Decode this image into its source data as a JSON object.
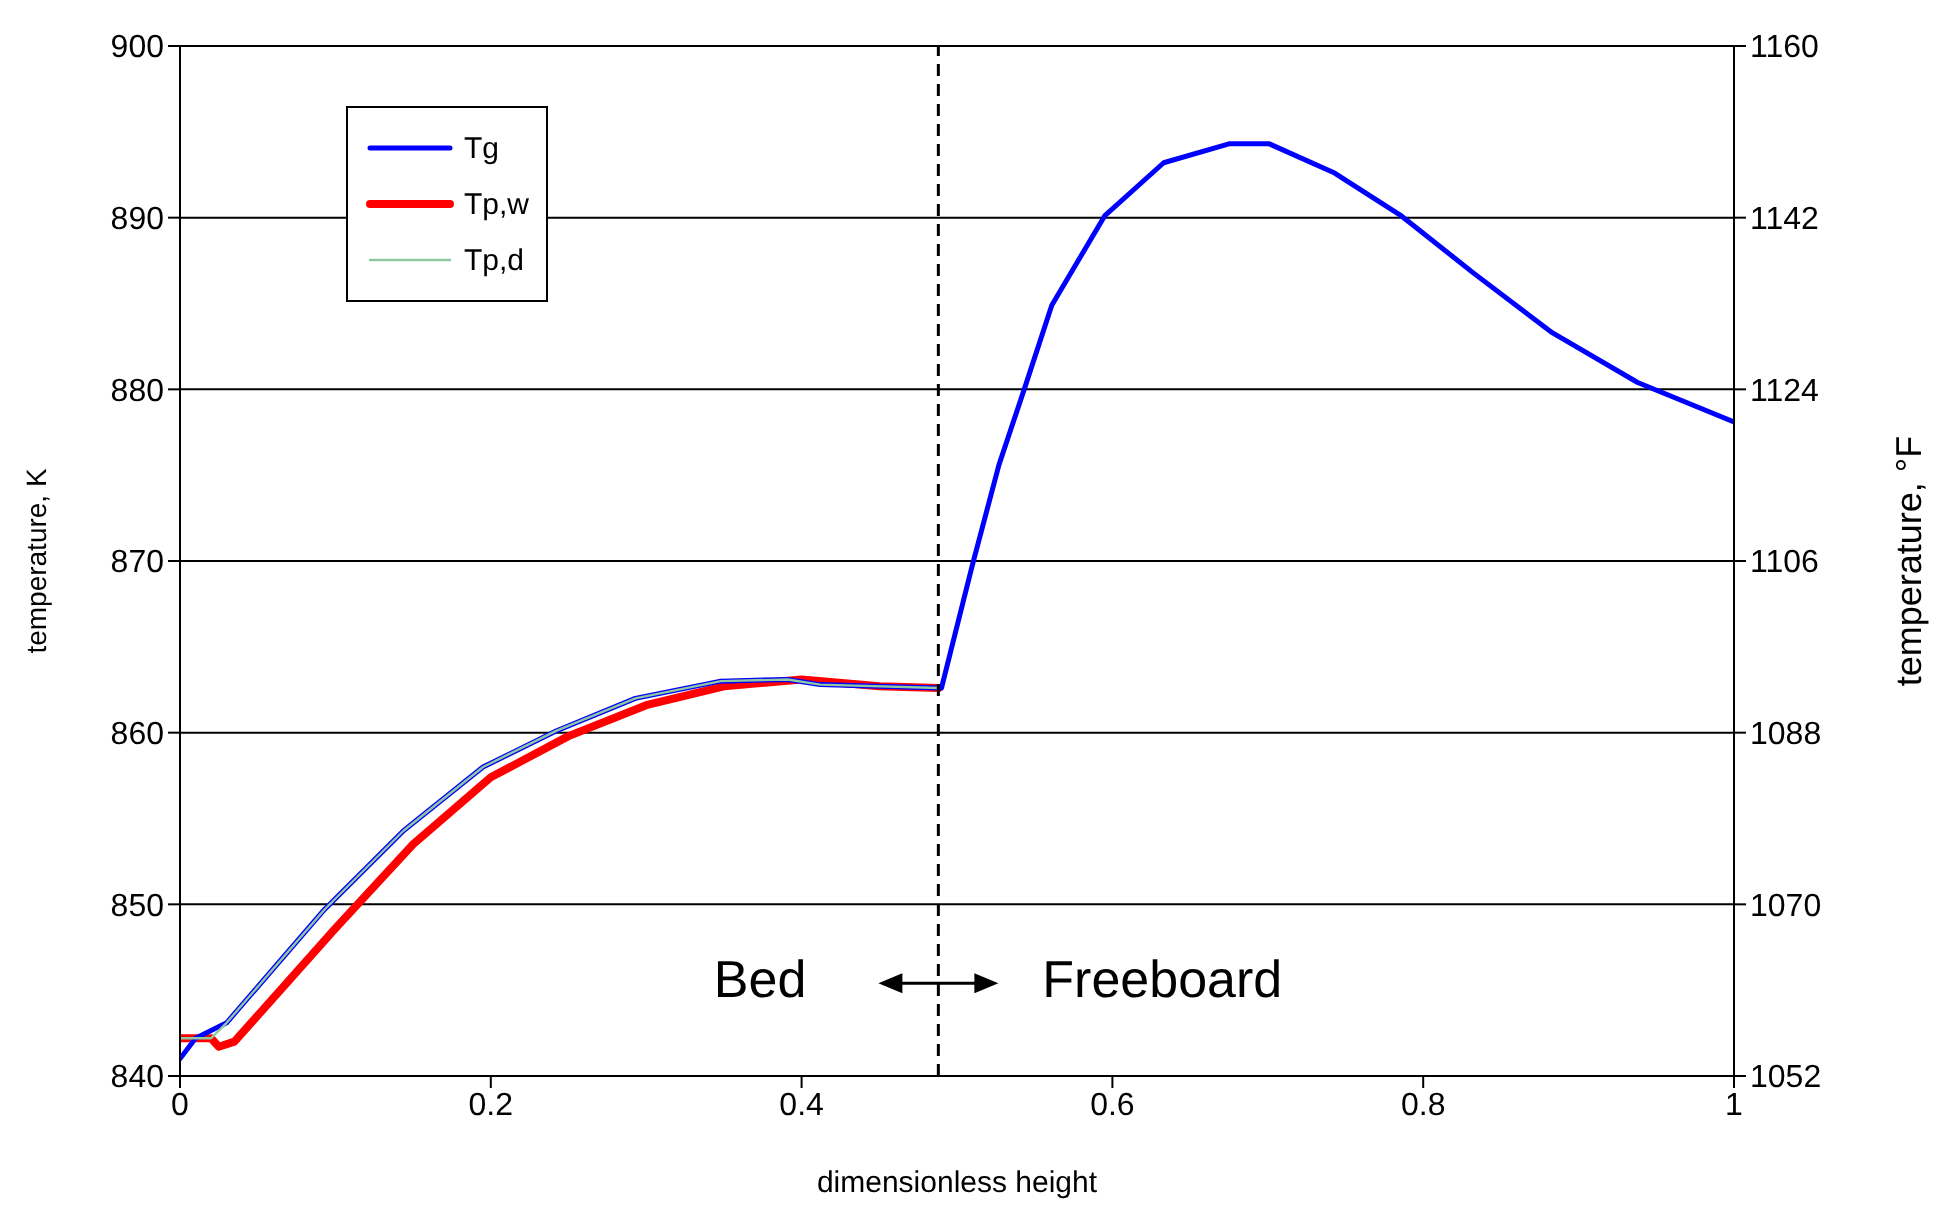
{
  "chart_data": {
    "type": "line",
    "xlabel": "dimensionless height",
    "ylabel": "temperature, K",
    "y2label": "temperature, °F",
    "xlim": [
      0,
      1
    ],
    "xticks": [
      0,
      0.2,
      0.4,
      0.6,
      0.8,
      1
    ],
    "ylim": [
      840,
      900
    ],
    "yticks": [
      840,
      850,
      860,
      870,
      880,
      890,
      900
    ],
    "y2lim": [
      1052,
      1160
    ],
    "y2ticks": [
      1052,
      1070,
      1088,
      1106,
      1124,
      1142,
      1160
    ],
    "grid": "y",
    "legend": "top left",
    "marker": "none",
    "line_style": "solid",
    "ref_lines": [
      {
        "axis": "x",
        "value": 0.488,
        "color": "#000000",
        "line_style": "dashed"
      }
    ],
    "annotations": [
      "Bed",
      "Freeboard"
    ],
    "series": [
      {
        "name": "Tg",
        "color": "#0000ff",
        "x": [
          0,
          0.01,
          0.03,
          0.093,
          0.144,
          0.195,
          0.242,
          0.293,
          0.348,
          0.391,
          0.412,
          0.488,
          0.49,
          0.51,
          0.527,
          0.544,
          0.561,
          0.595,
          0.633,
          0.675,
          0.701,
          0.743,
          0.786,
          0.832,
          0.883,
          0.938,
          1
        ],
        "values": [
          841,
          842.2,
          843.1,
          849.7,
          854.3,
          858,
          860.1,
          862,
          863,
          863.1,
          862.8,
          862.6,
          862.6,
          869.8,
          875.6,
          880.2,
          884.9,
          890.1,
          893.2,
          894.3,
          894.3,
          892.6,
          890.1,
          886.8,
          883.3,
          880.4,
          878.1
        ]
      },
      {
        "name": "Tp,w",
        "color": "#ff0000",
        "x": [
          0,
          0.02,
          0.025,
          0.035,
          0.1,
          0.15,
          0.2,
          0.25,
          0.3,
          0.35,
          0.4,
          0.45,
          0.488
        ],
        "values": [
          842.2,
          842.2,
          841.7,
          842,
          848.6,
          853.5,
          857.4,
          859.8,
          861.6,
          862.7,
          863.1,
          862.7,
          862.6
        ]
      },
      {
        "name": "Tp,d",
        "color": "#8fc8a0",
        "x": [
          0,
          0.02,
          0.03,
          0.093,
          0.144,
          0.195,
          0.242,
          0.293,
          0.348,
          0.391,
          0.412,
          0.488
        ],
        "values": [
          842.2,
          842.2,
          843.1,
          849.7,
          854.3,
          858,
          860.1,
          862,
          863,
          863.1,
          862.8,
          862.6
        ]
      }
    ]
  }
}
